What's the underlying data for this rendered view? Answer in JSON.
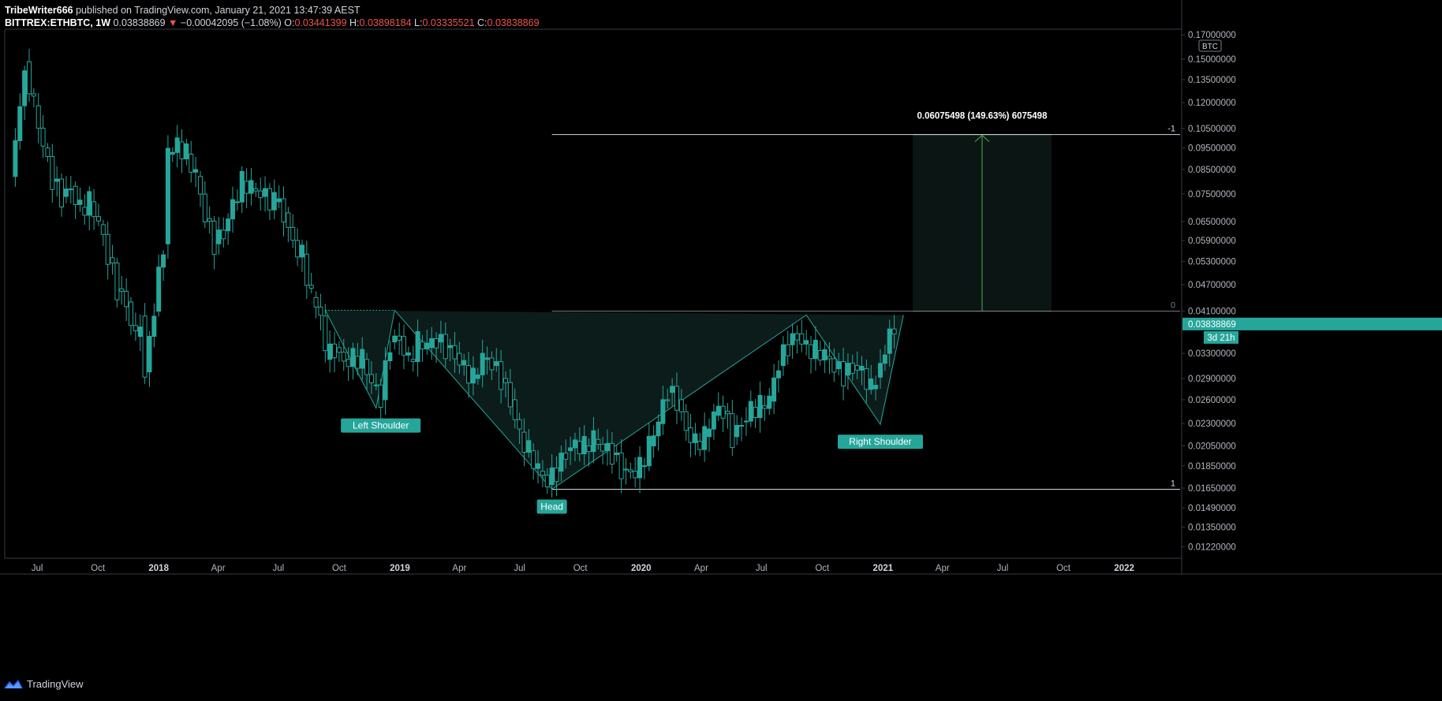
{
  "header": {
    "author": "TribeWriter666",
    "published": "published on TradingView.com, January 21, 2021 13:47:39 AEST",
    "symbol": "BITTREX:ETHBTC, 1W",
    "last": "0.03838869",
    "arrow": "▼",
    "change": "−0.00042095 (−1.08%)",
    "o_label": "O:",
    "o_value": "0.03441399",
    "h_label": "H:",
    "h_value": "0.03898184",
    "l_label": "L:",
    "l_value": "0.03335521",
    "c_label": "C:",
    "c_value": "0.03838869"
  },
  "footer": {
    "brand": "TradingView"
  },
  "colors": {
    "up": "#26a69a",
    "down": "#26a69a",
    "pattern_fill": "#0c1c1a",
    "target_fill": "#0b1514",
    "target_line": "#4caf50",
    "price_tag": "#26a69a"
  },
  "chart_data": {
    "type": "candlestick",
    "title": "",
    "xlabel": "",
    "ylabel": "",
    "y_scale": "log",
    "ylim": [
      0.0115,
      0.175
    ],
    "currency_label": "BTC",
    "y_ticks": [
      "0.17000000",
      "0.15000000",
      "0.13500000",
      "0.12000000",
      "0.10500000",
      "0.09500000",
      "0.08500000",
      "0.07500000",
      "0.06500000",
      "0.05900000",
      "0.05300000",
      "0.04700000",
      "0.04100000",
      "0.03300000",
      "0.02900000",
      "0.02600000",
      "0.02300000",
      "0.02050000",
      "0.01850000",
      "0.01650000",
      "0.01490000",
      "0.01350000",
      "0.01220000"
    ],
    "x_ticks": [
      {
        "date": "2017-07-01",
        "label": "Jul",
        "year": false
      },
      {
        "date": "2017-10-01",
        "label": "Oct",
        "year": false
      },
      {
        "date": "2018-01-01",
        "label": "2018",
        "year": true
      },
      {
        "date": "2018-04-01",
        "label": "Apr",
        "year": false
      },
      {
        "date": "2018-07-01",
        "label": "Jul",
        "year": false
      },
      {
        "date": "2018-10-01",
        "label": "Oct",
        "year": false
      },
      {
        "date": "2019-01-01",
        "label": "2019",
        "year": true
      },
      {
        "date": "2019-04-01",
        "label": "Apr",
        "year": false
      },
      {
        "date": "2019-07-01",
        "label": "Jul",
        "year": false
      },
      {
        "date": "2019-10-01",
        "label": "Oct",
        "year": false
      },
      {
        "date": "2020-01-01",
        "label": "2020",
        "year": true
      },
      {
        "date": "2020-04-01",
        "label": "Apr",
        "year": false
      },
      {
        "date": "2020-07-01",
        "label": "Jul",
        "year": false
      },
      {
        "date": "2020-10-01",
        "label": "Oct",
        "year": false
      },
      {
        "date": "2021-01-01",
        "label": "2021",
        "year": true
      },
      {
        "date": "2021-04-01",
        "label": "Apr",
        "year": false
      },
      {
        "date": "2021-07-01",
        "label": "Jul",
        "year": false
      },
      {
        "date": "2021-10-01",
        "label": "Oct",
        "year": false
      },
      {
        "date": "2022-01-01",
        "label": "2022",
        "year": true
      }
    ],
    "series": [
      {
        "kind": "close_path",
        "points": [
          [
            "2017-05-22",
            0.082
          ],
          [
            "2017-06-05",
            0.118
          ],
          [
            "2017-06-12",
            0.148
          ],
          [
            "2017-06-26",
            0.118
          ],
          [
            "2017-07-10",
            0.095
          ],
          [
            "2017-07-24",
            0.08
          ],
          [
            "2017-08-07",
            0.074
          ],
          [
            "2017-08-21",
            0.078
          ],
          [
            "2017-09-04",
            0.07
          ],
          [
            "2017-09-18",
            0.072
          ],
          [
            "2017-10-02",
            0.064
          ],
          [
            "2017-10-16",
            0.054
          ],
          [
            "2017-10-30",
            0.046
          ],
          [
            "2017-11-13",
            0.043
          ],
          [
            "2017-11-27",
            0.036
          ],
          [
            "2017-12-04",
            0.04
          ],
          [
            "2017-12-11",
            0.03
          ],
          [
            "2017-12-25",
            0.041
          ],
          [
            "2018-01-08",
            0.058
          ],
          [
            "2018-01-15",
            0.092
          ],
          [
            "2018-01-29",
            0.098
          ],
          [
            "2018-02-12",
            0.092
          ],
          [
            "2018-02-26",
            0.082
          ],
          [
            "2018-03-12",
            0.066
          ],
          [
            "2018-03-26",
            0.058
          ],
          [
            "2018-04-09",
            0.062
          ],
          [
            "2018-04-23",
            0.072
          ],
          [
            "2018-05-07",
            0.08
          ],
          [
            "2018-05-21",
            0.077
          ],
          [
            "2018-06-04",
            0.074
          ],
          [
            "2018-06-25",
            0.072
          ],
          [
            "2018-07-09",
            0.068
          ],
          [
            "2018-07-23",
            0.059
          ],
          [
            "2018-08-06",
            0.055
          ],
          [
            "2018-08-20",
            0.044
          ],
          [
            "2018-09-03",
            0.04
          ],
          [
            "2018-09-10",
            0.032
          ],
          [
            "2018-09-24",
            0.034
          ],
          [
            "2018-10-08",
            0.032
          ],
          [
            "2018-10-22",
            0.0325
          ],
          [
            "2018-11-05",
            0.032
          ],
          [
            "2018-11-19",
            0.028
          ],
          [
            "2018-12-03",
            0.026
          ],
          [
            "2018-12-17",
            0.035
          ],
          [
            "2018-12-31",
            0.036
          ],
          [
            "2019-01-14",
            0.032
          ],
          [
            "2019-01-28",
            0.035
          ],
          [
            "2019-02-11",
            0.034
          ],
          [
            "2019-02-25",
            0.035
          ],
          [
            "2019-03-11",
            0.034
          ],
          [
            "2019-03-25",
            0.033
          ],
          [
            "2019-04-08",
            0.031
          ],
          [
            "2019-04-22",
            0.029
          ],
          [
            "2019-05-06",
            0.032
          ],
          [
            "2019-05-20",
            0.031
          ],
          [
            "2019-06-03",
            0.029
          ],
          [
            "2019-06-17",
            0.026
          ],
          [
            "2019-07-01",
            0.022
          ],
          [
            "2019-07-15",
            0.02
          ],
          [
            "2019-07-29",
            0.018
          ],
          [
            "2019-08-12",
            0.0168
          ],
          [
            "2019-08-26",
            0.018
          ],
          [
            "2019-09-09",
            0.02
          ],
          [
            "2019-09-23",
            0.021
          ],
          [
            "2019-10-07",
            0.0205
          ],
          [
            "2019-10-21",
            0.0212
          ],
          [
            "2019-11-04",
            0.02
          ],
          [
            "2019-11-18",
            0.0196
          ],
          [
            "2019-12-02",
            0.0182
          ],
          [
            "2019-12-16",
            0.018
          ],
          [
            "2019-12-30",
            0.0185
          ],
          [
            "2020-01-13",
            0.0205
          ],
          [
            "2020-01-27",
            0.023
          ],
          [
            "2020-02-10",
            0.027
          ],
          [
            "2020-02-24",
            0.026
          ],
          [
            "2020-03-09",
            0.0225
          ],
          [
            "2020-03-23",
            0.021
          ],
          [
            "2020-04-06",
            0.0215
          ],
          [
            "2020-04-20",
            0.024
          ],
          [
            "2020-05-04",
            0.0245
          ],
          [
            "2020-05-18",
            0.0215
          ],
          [
            "2020-06-01",
            0.0232
          ],
          [
            "2020-06-15",
            0.025
          ],
          [
            "2020-06-29",
            0.0252
          ],
          [
            "2020-07-13",
            0.0258
          ],
          [
            "2020-07-27",
            0.031
          ],
          [
            "2020-08-10",
            0.0345
          ],
          [
            "2020-08-24",
            0.0365
          ],
          [
            "2020-09-07",
            0.0345
          ],
          [
            "2020-09-21",
            0.0335
          ],
          [
            "2020-10-05",
            0.0325
          ],
          [
            "2020-10-19",
            0.0305
          ],
          [
            "2020-11-02",
            0.0295
          ],
          [
            "2020-11-16",
            0.031
          ],
          [
            "2020-11-30",
            0.0305
          ],
          [
            "2020-12-14",
            0.0275
          ],
          [
            "2020-12-21",
            0.0292
          ],
          [
            "2021-01-04",
            0.033
          ],
          [
            "2021-01-18",
            0.03838869
          ]
        ]
      }
    ],
    "current_price": 0.03838869,
    "current_price_label": "0.03838869",
    "countdown_label": "3d 21h",
    "pattern": {
      "labels": [
        {
          "text": "Left Shoulder",
          "date": "2018-12-03",
          "price": 0.0249
        },
        {
          "text": "Head",
          "date": "2019-08-19",
          "price": 0.0164
        },
        {
          "text": "Right Shoulder",
          "date": "2020-12-28",
          "price": 0.0229
        }
      ],
      "neckline_value": 0.041,
      "vertices": [
        [
          "2018-09-10",
          0.0412
        ],
        [
          "2018-11-26",
          0.0249
        ],
        [
          "2018-12-24",
          0.0412
        ],
        [
          "2019-08-19",
          0.0164
        ],
        [
          "2020-09-07",
          0.0402
        ],
        [
          "2020-12-28",
          0.0229
        ],
        [
          "2021-02-01",
          0.0402
        ]
      ]
    },
    "fib_levels": [
      {
        "label": "-1",
        "price": 0.10175498,
        "start": "2019-08-19"
      },
      {
        "label": "0",
        "price": 0.041,
        "start": "2019-08-19"
      },
      {
        "label": "1",
        "price": 0.0164,
        "start": "2019-08-19"
      }
    ],
    "target_box": {
      "start": "2021-02-15",
      "end": "2021-09-13",
      "low": 0.041,
      "high": 0.10175498,
      "label": "0.06075498 (149.63%) 6075498"
    }
  }
}
